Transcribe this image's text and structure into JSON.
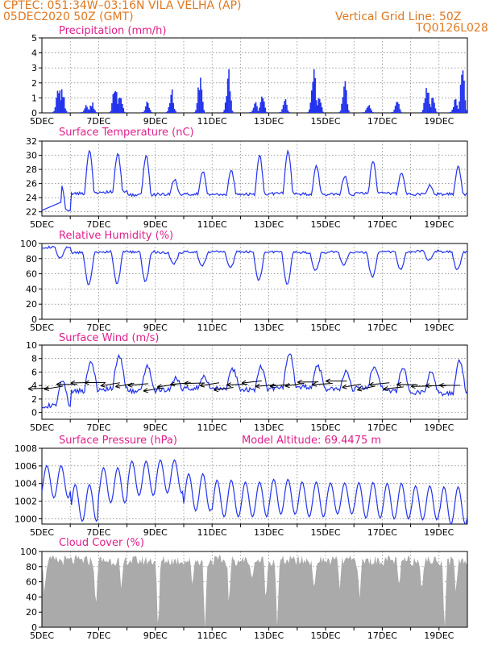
{
  "header": {
    "line1": "CPTEC:   051:34W–03:16N   VILA VELHA (AP)",
    "line2": "05DEC2020 50Z (GMT)",
    "grid_note": "Vertical Grid Line: 50Z",
    "code": "TQ0126L028"
  },
  "colors": {
    "header": "#e07820",
    "title": "#e0208c",
    "series": "#2233ee",
    "cloud": "#aaaaaa"
  },
  "chart_data": [
    {
      "id": "precipitation",
      "type": "bar",
      "title": "Precipitation (mm/h)",
      "x_range_days": [
        5,
        20
      ],
      "x_ticks": [
        "5DEC",
        "7DEC",
        "9DEC",
        "11DEC",
        "13DEC",
        "15DEC",
        "17DEC",
        "19DEC"
      ],
      "ylim": [
        0,
        5
      ],
      "y_ticks": [
        0,
        1,
        2,
        3,
        4,
        5
      ],
      "bursts": [
        {
          "day": 5.55,
          "peak": 2.4
        },
        {
          "day": 5.7,
          "peak": 1.8
        },
        {
          "day": 6.55,
          "peak": 0.7
        },
        {
          "day": 6.75,
          "peak": 0.8
        },
        {
          "day": 7.55,
          "peak": 2.4
        },
        {
          "day": 7.75,
          "peak": 1.6
        },
        {
          "day": 8.7,
          "peak": 0.8
        },
        {
          "day": 9.55,
          "peak": 1.7
        },
        {
          "day": 10.55,
          "peak": 2.9
        },
        {
          "day": 11.55,
          "peak": 3.1
        },
        {
          "day": 12.5,
          "peak": 0.8
        },
        {
          "day": 12.75,
          "peak": 1.3
        },
        {
          "day": 13.55,
          "peak": 1.0
        },
        {
          "day": 14.55,
          "peak": 3.9
        },
        {
          "day": 14.75,
          "peak": 1.4
        },
        {
          "day": 15.65,
          "peak": 2.6
        },
        {
          "day": 16.5,
          "peak": 0.7
        },
        {
          "day": 17.5,
          "peak": 1.0
        },
        {
          "day": 18.55,
          "peak": 2.5
        },
        {
          "day": 18.75,
          "peak": 1.1
        },
        {
          "day": 19.55,
          "peak": 1.0
        },
        {
          "day": 19.8,
          "peak": 3.6
        }
      ]
    },
    {
      "id": "temperature",
      "type": "line",
      "title": "Surface Temperature (nC)",
      "x_range_days": [
        5,
        20
      ],
      "x_ticks": [
        "5DEC",
        "7DEC",
        "9DEC",
        "11DEC",
        "13DEC",
        "15DEC",
        "17DEC",
        "19DEC"
      ],
      "ylim": [
        21.4,
        32
      ],
      "y_ticks": [
        22,
        24,
        26,
        28,
        30,
        32
      ],
      "daily_max": [
        25.8,
        30.7,
        30.2,
        29.9,
        26.5,
        27.6,
        27.8,
        30.0,
        30.7,
        28.4,
        27.0,
        29.2,
        27.5,
        25.7,
        28.3
      ],
      "daily_min": [
        22.2,
        24.6,
        24.8,
        24.4,
        24.5,
        24.5,
        24.4,
        24.5,
        24.6,
        24.5,
        24.5,
        24.6,
        24.6,
        24.5,
        24.5
      ]
    },
    {
      "id": "humidity",
      "type": "line",
      "title": "Relative Humidity (%)",
      "x_range_days": [
        5,
        20
      ],
      "x_ticks": [
        "5DEC",
        "7DEC",
        "9DEC",
        "11DEC",
        "13DEC",
        "15DEC",
        "17DEC",
        "19DEC"
      ],
      "ylim": [
        0,
        100
      ],
      "y_ticks": [
        0,
        20,
        40,
        60,
        80,
        100
      ],
      "daily_high": [
        95,
        88,
        89,
        89,
        88,
        89,
        89,
        89,
        89,
        88,
        89,
        88,
        89,
        90,
        89
      ],
      "daily_low": [
        80,
        46,
        47,
        50,
        73,
        70,
        68,
        52,
        47,
        64,
        72,
        56,
        66,
        78,
        65
      ]
    },
    {
      "id": "wind",
      "type": "line",
      "title": "Surface Wind (m/s)",
      "x_range_days": [
        5,
        20
      ],
      "x_ticks": [
        "5DEC",
        "7DEC",
        "9DEC",
        "11DEC",
        "13DEC",
        "15DEC",
        "17DEC",
        "19DEC"
      ],
      "ylim": [
        -1,
        10
      ],
      "y_ticks": [
        0,
        2,
        4,
        6,
        8,
        10
      ],
      "daily_high": [
        4.5,
        7.5,
        8.3,
        6.8,
        5.0,
        5.2,
        6.4,
        6.8,
        8.8,
        6.8,
        6.0,
        6.8,
        6.5,
        6.0,
        7.5
      ],
      "daily_low": [
        1.0,
        3.2,
        3.5,
        3.2,
        3.4,
        3.6,
        3.5,
        3.4,
        3.6,
        3.8,
        3.5,
        3.6,
        3.2,
        3.0,
        2.8
      ],
      "vector_direction": "from the east-southeast"
    },
    {
      "id": "pressure",
      "type": "line",
      "title": "Surface Pressure (hPa)",
      "annotation": "Model Altitude: 69.4475 m",
      "x_range_days": [
        5,
        20
      ],
      "x_ticks": [
        "5DEC",
        "7DEC",
        "9DEC",
        "11DEC",
        "13DEC",
        "15DEC",
        "17DEC",
        "19DEC"
      ],
      "ylim": [
        999.4,
        1008
      ],
      "y_ticks": [
        1000,
        1002,
        1004,
        1006,
        1008
      ],
      "daily_mean": [
        1004.2,
        1001.8,
        1003.8,
        1004.6,
        1004.8,
        1003.0,
        1002.3,
        1002.2,
        1002.5,
        1002.2,
        1002.3,
        1002.1,
        1002.0,
        1001.8,
        1001.5
      ],
      "amplitude": 2.2
    },
    {
      "id": "cloud",
      "type": "area",
      "title": "Cloud Cover (%)",
      "x_range_days": [
        5,
        20
      ],
      "x_ticks": [
        "5DEC",
        "7DEC",
        "9DEC",
        "11DEC",
        "13DEC",
        "15DEC",
        "17DEC",
        "19DEC"
      ],
      "ylim": [
        0,
        100
      ],
      "y_ticks": [
        0,
        20,
        40,
        60,
        80,
        100
      ],
      "typical": 88,
      "dips": [
        {
          "day": 5.1,
          "depth": 40
        },
        {
          "day": 6.9,
          "depth": 65
        },
        {
          "day": 7.8,
          "depth": 45
        },
        {
          "day": 9.1,
          "depth": 95
        },
        {
          "day": 10.3,
          "depth": 30
        },
        {
          "day": 10.75,
          "depth": 90
        },
        {
          "day": 11.6,
          "depth": 55
        },
        {
          "day": 12.4,
          "depth": 30
        },
        {
          "day": 12.9,
          "depth": 50
        },
        {
          "day": 13.3,
          "depth": 85
        },
        {
          "day": 14.6,
          "depth": 45
        },
        {
          "day": 15.5,
          "depth": 35
        },
        {
          "day": 16.2,
          "depth": 55
        },
        {
          "day": 17.6,
          "depth": 40
        },
        {
          "day": 18.4,
          "depth": 35
        },
        {
          "day": 19.2,
          "depth": 90
        },
        {
          "day": 19.6,
          "depth": 40
        }
      ]
    }
  ]
}
